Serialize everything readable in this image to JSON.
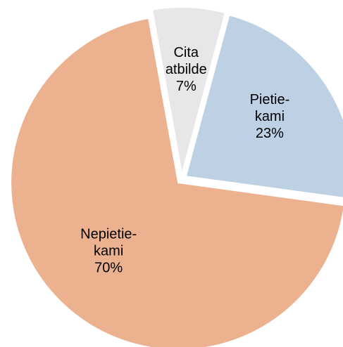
{
  "chart_data": {
    "type": "pie",
    "categories": [
      "Pietie-kami",
      "Nepietie-kami",
      "Cita atbilde"
    ],
    "values": [
      23,
      70,
      7
    ],
    "value_labels": [
      "23%",
      "70%",
      "7%"
    ],
    "colors": [
      "#bdd0e4",
      "#ecb28f",
      "#e8e6e8"
    ]
  }
}
